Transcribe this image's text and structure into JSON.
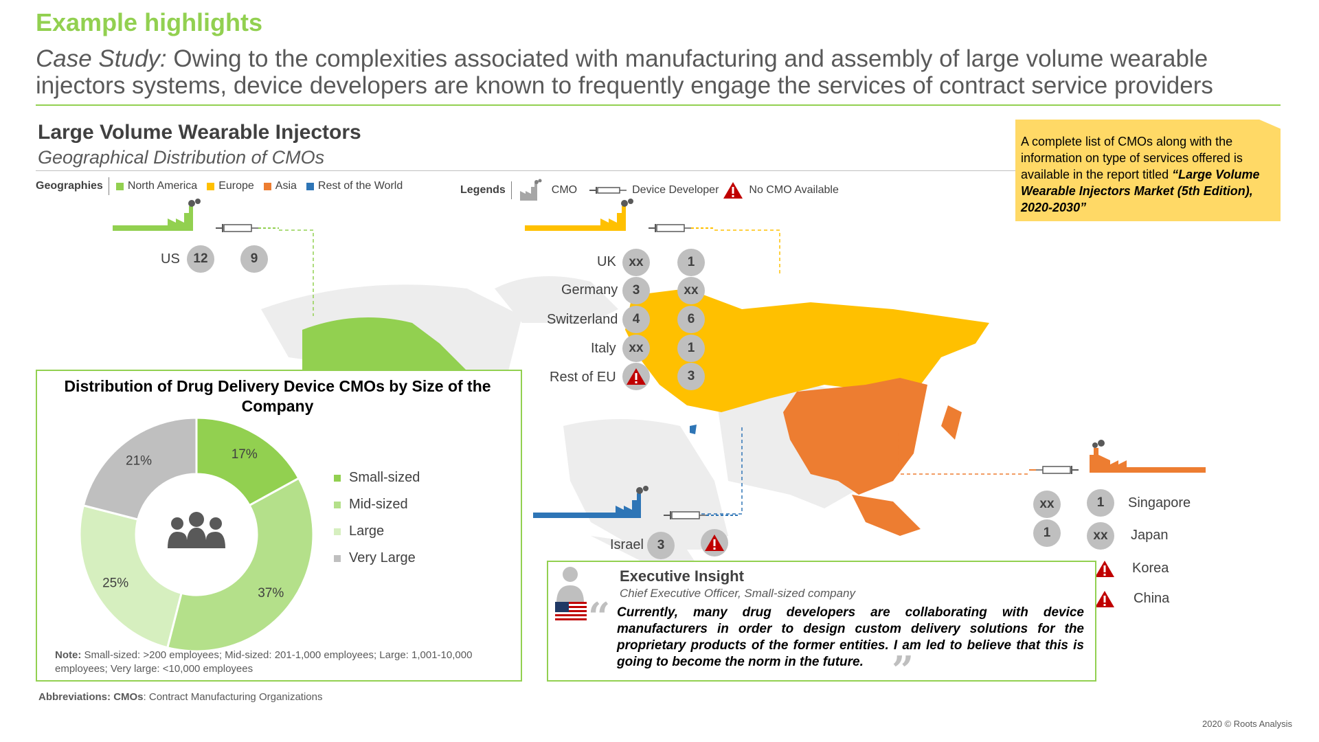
{
  "header": {
    "title": "Example highlights",
    "subtitle_lead": "Case Study:",
    "subtitle_rest": "Owing to the complexities associated with manufacturing and assembly of large volume wearable injectors systems, device developers are known to frequently engage the services of contract service providers"
  },
  "section": {
    "title": "Large Volume Wearable Injectors",
    "subtitle": "Geographical Distribution of CMOs"
  },
  "geographies": {
    "label": "Geographies",
    "items": [
      {
        "name": "North America",
        "color": "#92d050"
      },
      {
        "name": "Europe",
        "color": "#ffc000"
      },
      {
        "name": "Asia",
        "color": "#ed7d31"
      },
      {
        "name": "Rest of the World",
        "color": "#2e75b6"
      }
    ]
  },
  "legends": {
    "label": "Legends",
    "cmo": "CMO",
    "developer": "Device Developer",
    "no_cmo": "No CMO Available"
  },
  "info_box": {
    "text": "A complete list of CMOs along with the information on type of services offered is available in the report titled ",
    "report": "“Large Volume Wearable Injectors Market (5th Edition), 2020-2030”"
  },
  "regions": {
    "north_america": [
      {
        "country": "US",
        "cmo": "12",
        "developer": "9"
      }
    ],
    "europe": [
      {
        "country": "UK",
        "cmo": "xx",
        "developer": "1"
      },
      {
        "country": "Germany",
        "cmo": "3",
        "developer": "xx"
      },
      {
        "country": "Switzerland",
        "cmo": "4",
        "developer": "6"
      },
      {
        "country": "Italy",
        "cmo": "xx",
        "developer": "1"
      },
      {
        "country": "Rest of EU",
        "cmo": "no-cmo",
        "developer": "3"
      }
    ],
    "rest_of_world": [
      {
        "country": "Israel",
        "cmo": "3",
        "developer": "no-cmo"
      }
    ],
    "asia": [
      {
        "country": "Singapore",
        "developer": "xx",
        "cmo": "1"
      },
      {
        "country": "Japan",
        "developer": "1",
        "cmo": "xx"
      },
      {
        "country": "Korea",
        "developer": "",
        "cmo": "no-cmo"
      },
      {
        "country": "China",
        "developer": "",
        "cmo": "no-cmo"
      }
    ]
  },
  "chart_data": {
    "type": "pie",
    "title": "Distribution of Drug Delivery Device CMOs by Size of the Company",
    "categories": [
      "Small-sized",
      "Mid-sized",
      "Large",
      "Very Large"
    ],
    "values": [
      17,
      37,
      25,
      21
    ],
    "labels": [
      "17%",
      "37%",
      "25%",
      "21%"
    ],
    "colors": [
      "#92d050",
      "#b4e08a",
      "#d6efbf",
      "#bfbfbf"
    ],
    "donut": true,
    "legend": "right"
  },
  "pie_note": {
    "label": "Note:",
    "text": "Small-sized: >200 employees; Mid-sized: 201-1,000 employees; Large: 1,001-10,000 employees; Very large: <10,000 employees"
  },
  "executive": {
    "title": "Executive Insight",
    "role": "Chief Executive Officer, Small-sized company",
    "quote": "Currently, many drug developers are collaborating with device manufacturers in order to design custom delivery solutions for the proprietary products of the former entities. I am led to believe that this is going to become the norm in the future."
  },
  "abbreviations": {
    "label": "Abbreviations:",
    "term": "CMOs",
    "text": ": Contract Manufacturing Organizations"
  },
  "copyright": "2020 © Roots Analysis",
  "icons": {
    "cmo": "factory-icon",
    "developer": "syringe-icon",
    "no_cmo": "warning-icon",
    "group": "people-group-icon",
    "person": "person-icon",
    "flag": "us-flag-icon"
  }
}
